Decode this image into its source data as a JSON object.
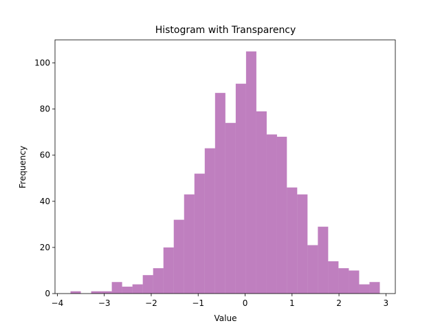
{
  "chart_data": {
    "type": "histogram",
    "title": "Histogram with Transparency",
    "xlabel": "Value",
    "ylabel": "Frequency",
    "bins": [
      -3.72,
      -3.5,
      -3.28,
      -3.06,
      -2.84,
      -2.62,
      -2.4,
      -2.18,
      -1.96,
      -1.74,
      -1.52,
      -1.3,
      -1.08,
      -0.86,
      -0.64,
      -0.42,
      -0.2,
      0.02,
      0.24,
      0.46,
      0.68,
      0.89,
      1.11,
      1.33,
      1.55,
      1.77,
      1.99,
      2.21,
      2.43,
      2.65,
      2.87
    ],
    "values": [
      1,
      0,
      1,
      1,
      5,
      3,
      4,
      8,
      11,
      20,
      32,
      43,
      52,
      63,
      87,
      74,
      91,
      105,
      79,
      69,
      68,
      46,
      43,
      21,
      29,
      14,
      11,
      10,
      4,
      5
    ],
    "color": "purple",
    "alpha": 0.5,
    "xlim": [
      -4.05,
      3.2
    ],
    "xticks": [
      {
        "value": -4,
        "label": "−4"
      },
      {
        "value": -3,
        "label": "−3"
      },
      {
        "value": -2,
        "label": "−2"
      },
      {
        "value": -1,
        "label": "−1"
      },
      0,
      1,
      2,
      3
    ],
    "ylim": [
      0,
      110
    ],
    "yticks": [
      0,
      20,
      40,
      60,
      80,
      100
    ]
  }
}
